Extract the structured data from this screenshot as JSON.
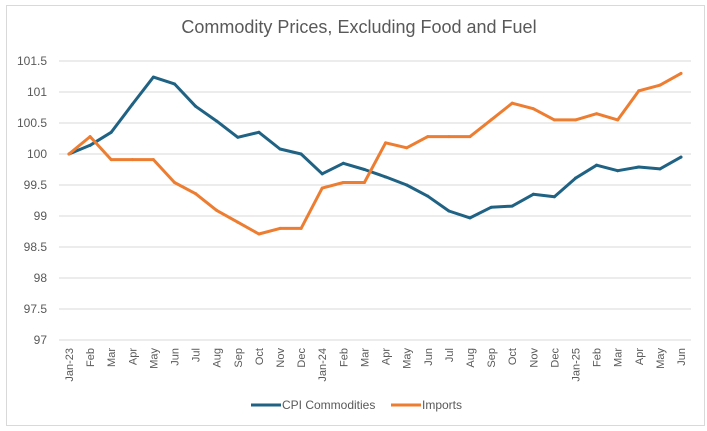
{
  "chart_data": {
    "type": "line",
    "title": "Commodity Prices, Excluding Food and Fuel",
    "xlabel": "",
    "ylabel": "",
    "ylim": [
      97,
      101.5
    ],
    "yticks": [
      97,
      97.5,
      98,
      98.5,
      99,
      99.5,
      100,
      100.5,
      101,
      101.5
    ],
    "ytick_labels": [
      "97",
      "97.5",
      "98",
      "98.5",
      "99",
      "99.5",
      "100",
      "100.5",
      "101",
      "101.5"
    ],
    "grid": true,
    "legend_position": "bottom",
    "categories": [
      "Jan-23",
      "Feb",
      "Mar",
      "Apr",
      "May",
      "Jun",
      "Jul",
      "Aug",
      "Sep",
      "Oct",
      "Nov",
      "Dec",
      "Jan-24",
      "Feb",
      "Mar",
      "Apr",
      "May",
      "Jun",
      "Jul",
      "Aug",
      "Sep",
      "Oct",
      "Nov",
      "Dec",
      "Jan-25",
      "Feb",
      "Mar",
      "Apr",
      "May",
      "Jun"
    ],
    "series": [
      {
        "name": "CPI Commodities",
        "color": "#1f6283",
        "values": [
          100.0,
          100.14,
          100.35,
          100.8,
          101.24,
          101.13,
          100.77,
          100.53,
          100.27,
          100.35,
          100.08,
          100.0,
          99.68,
          99.85,
          99.75,
          99.63,
          99.5,
          99.32,
          99.08,
          98.97,
          99.14,
          99.16,
          99.35,
          99.31,
          99.61,
          99.82,
          99.73,
          99.79,
          99.76,
          99.95
        ]
      },
      {
        "name": "Imports",
        "color": "#ed7d31",
        "values": [
          100.0,
          100.28,
          99.91,
          99.91,
          99.91,
          99.54,
          99.36,
          99.09,
          98.9,
          98.71,
          98.8,
          98.8,
          99.45,
          99.54,
          99.54,
          100.18,
          100.1,
          100.28,
          100.28,
          100.28,
          100.55,
          100.82,
          100.73,
          100.55,
          100.55,
          100.65,
          100.55,
          101.02,
          101.11,
          101.3
        ]
      }
    ]
  }
}
